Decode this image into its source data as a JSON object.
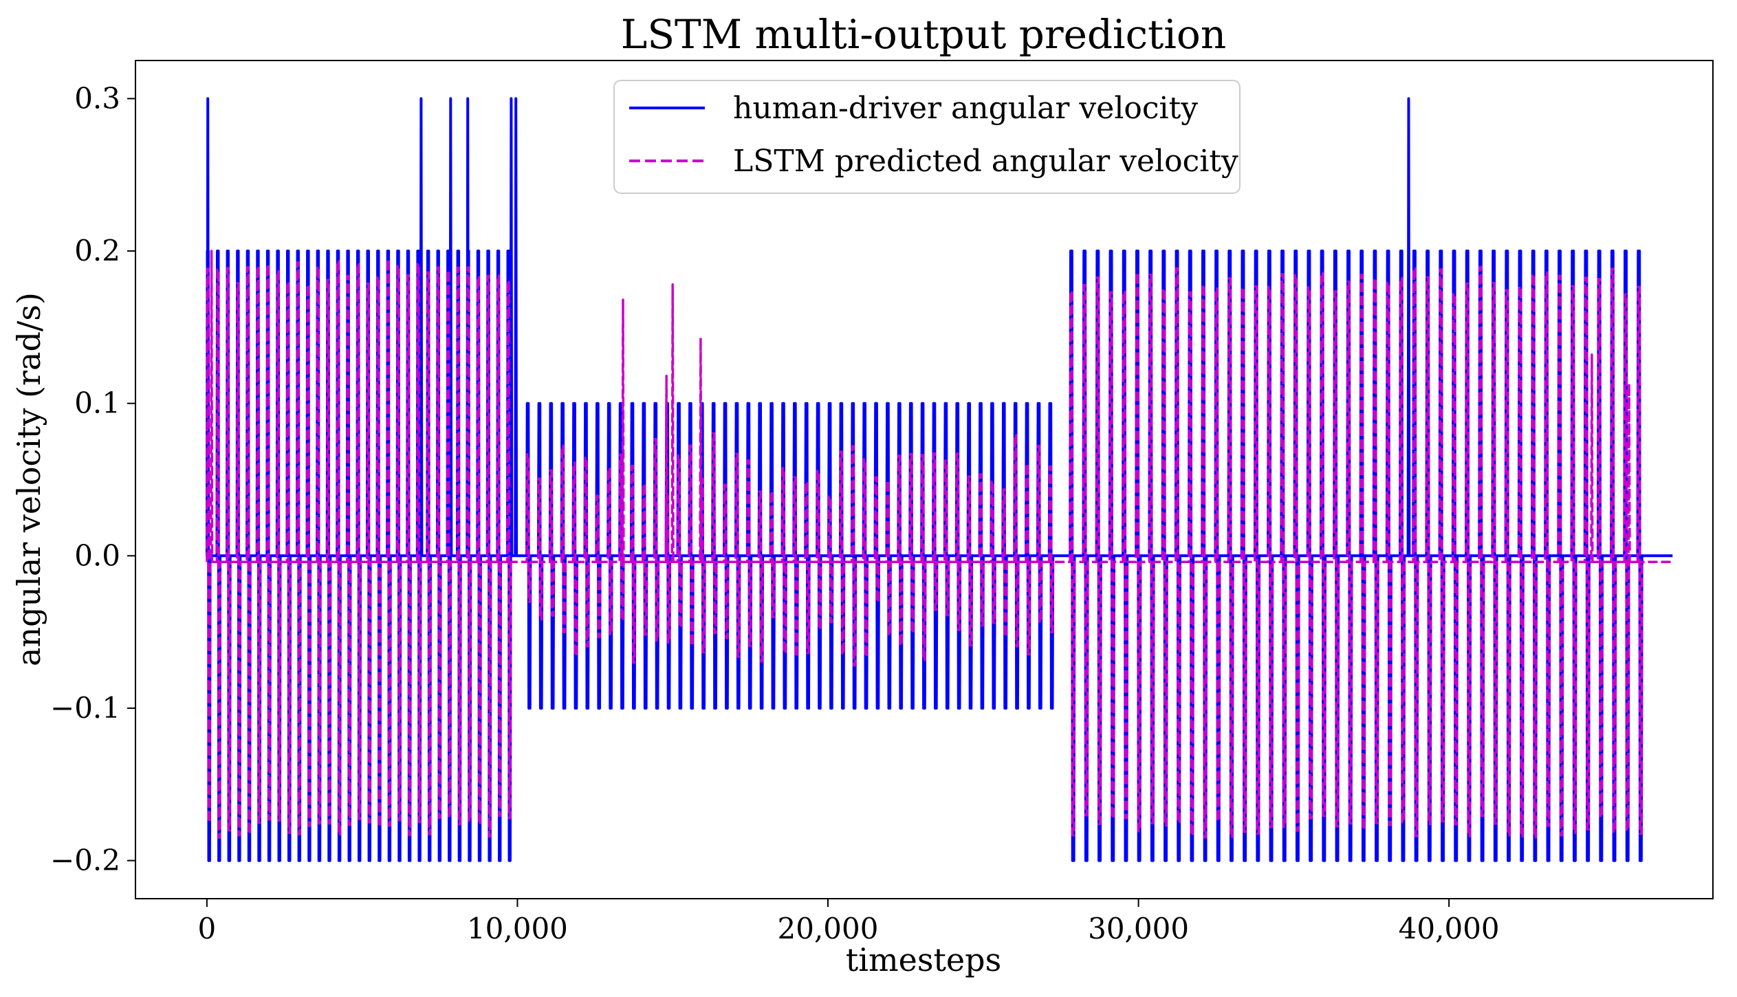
{
  "chart_data": {
    "type": "line",
    "title": "LSTM multi-output prediction",
    "xlabel": "timesteps",
    "ylabel": "angular velocity (rad/s)",
    "xlim": [
      -2300,
      48500
    ],
    "ylim": [
      -0.225,
      0.325
    ],
    "xticks": [
      0,
      10000,
      20000,
      30000,
      40000
    ],
    "xtick_labels": [
      "0",
      "10,000",
      "20,000",
      "30,000",
      "40,000"
    ],
    "yticks": [
      -0.2,
      -0.1,
      0.0,
      0.1,
      0.2,
      0.3
    ],
    "ytick_labels": [
      "−0.2",
      "−0.1",
      "0.0",
      "0.1",
      "0.2",
      "0.3"
    ],
    "grid": false,
    "legend_position": "top-center",
    "series": [
      {
        "name": "human-driver angular velocity",
        "color": "#0000ff",
        "style": "solid",
        "segments": [
          {
            "x_start": 0,
            "x_end": 10000,
            "pulses": 31,
            "high": 0.2,
            "low": -0.2,
            "spikes": [
              {
                "x": 30,
                "value": 0.3
              },
              {
                "x": 6900,
                "value": 0.3
              },
              {
                "x": 7850,
                "value": 0.3
              },
              {
                "x": 8400,
                "value": 0.3
              },
              {
                "x": 9800,
                "value": 0.3
              },
              {
                "x": 9950,
                "value": 0.3
              }
            ]
          },
          {
            "x_start": 10300,
            "x_end": 27500,
            "pulses": 46,
            "high": 0.1,
            "low": -0.1,
            "spikes": []
          },
          {
            "x_start": 27800,
            "x_end": 46500,
            "pulses": 44,
            "high": 0.2,
            "low": -0.2,
            "spikes": [
              {
                "x": 38700,
                "value": 0.3
              }
            ]
          }
        ],
        "x_end": 47200,
        "baseline": 0.0
      },
      {
        "name": "LSTM predicted angular velocity",
        "color": "#cc00cc",
        "style": "dashed",
        "segments": [
          {
            "x_start": 0,
            "x_end": 10000,
            "pulses": 31,
            "high": 0.195,
            "low": -0.185,
            "spikes": [
              {
                "x": 150,
                "value": 0.2
              }
            ]
          },
          {
            "x_start": 10300,
            "x_end": 27500,
            "pulses": 46,
            "high": 0.07,
            "low": -0.06,
            "spikes": [
              {
                "x": 13400,
                "value": 0.168
              },
              {
                "x": 15000,
                "value": 0.178
              },
              {
                "x": 15900,
                "value": 0.143
              },
              {
                "x": 14800,
                "value": 0.118
              }
            ]
          },
          {
            "x_start": 27800,
            "x_end": 46500,
            "pulses": 44,
            "high": 0.19,
            "low": -0.185,
            "spikes": [
              {
                "x": 44600,
                "value": 0.132
              },
              {
                "x": 45800,
                "value": 0.113
              }
            ]
          }
        ],
        "x_end": 47200,
        "baseline": -0.004
      }
    ]
  }
}
